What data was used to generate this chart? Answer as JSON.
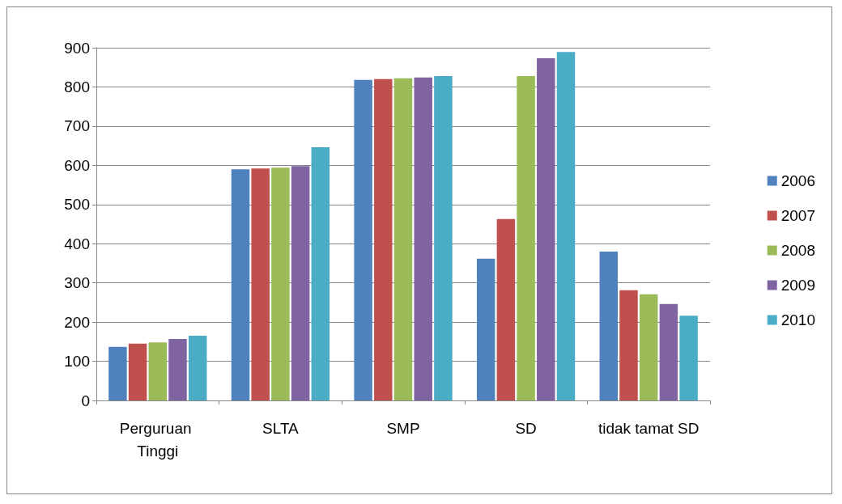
{
  "chart_data": {
    "type": "bar",
    "categories": [
      "Perguruan Tinggi",
      "SLTA",
      "SMP",
      "SD",
      "tidak tamat SD"
    ],
    "series": [
      {
        "name": "2006",
        "color": "#4f81bd",
        "values": [
          137,
          590,
          818,
          362,
          380
        ]
      },
      {
        "name": "2007",
        "color": "#c0504d",
        "values": [
          145,
          592,
          820,
          463,
          281
        ]
      },
      {
        "name": "2008",
        "color": "#9bbb59",
        "values": [
          148,
          594,
          822,
          828,
          271
        ]
      },
      {
        "name": "2009",
        "color": "#8064a2",
        "values": [
          157,
          598,
          824,
          873,
          246
        ]
      },
      {
        "name": "2010",
        "color": "#4bacc6",
        "values": [
          165,
          646,
          828,
          889,
          216
        ]
      }
    ],
    "ylim": [
      0,
      900
    ],
    "yticks": [
      0,
      100,
      200,
      300,
      400,
      500,
      600,
      700,
      800,
      900
    ],
    "grid": "y",
    "legend": "right"
  }
}
